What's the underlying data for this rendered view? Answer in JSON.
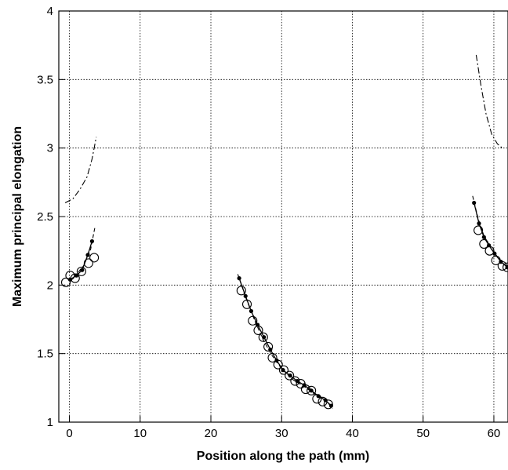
{
  "chart_data": {
    "type": "scatter",
    "xlabel": "Position along the path (mm)",
    "ylabel": "Maximum principal elongation",
    "xlim": [
      -1.5,
      62
    ],
    "ylim": [
      1,
      4
    ],
    "x_ticks": [
      0,
      10,
      20,
      30,
      40,
      50,
      60
    ],
    "y_ticks": [
      1,
      1.5,
      2,
      2.5,
      3,
      3.5,
      4
    ],
    "x_tick_labels": [
      "0",
      "10",
      "20",
      "30",
      "40",
      "50",
      "60"
    ],
    "y_tick_labels": [
      "1",
      "1.5",
      "2",
      "2.5",
      "3",
      "3.5",
      "4"
    ],
    "grid": true,
    "series": [
      {
        "style": "open-circle",
        "points": [
          [
            -0.5,
            2.02
          ],
          [
            0.1,
            2.07
          ],
          [
            0.8,
            2.05
          ],
          [
            1.7,
            2.1
          ],
          [
            2.7,
            2.16
          ],
          [
            3.5,
            2.2
          ],
          [
            24.3,
            1.96
          ],
          [
            25.1,
            1.86
          ],
          [
            25.9,
            1.74
          ],
          [
            26.7,
            1.67
          ],
          [
            27.4,
            1.62
          ],
          [
            28.1,
            1.55
          ],
          [
            28.7,
            1.47
          ],
          [
            29.5,
            1.42
          ],
          [
            30.3,
            1.38
          ],
          [
            31.1,
            1.34
          ],
          [
            31.9,
            1.3
          ],
          [
            32.7,
            1.28
          ],
          [
            33.4,
            1.24
          ],
          [
            34.2,
            1.23
          ],
          [
            35.0,
            1.17
          ],
          [
            35.8,
            1.15
          ],
          [
            36.6,
            1.13
          ],
          [
            57.8,
            2.4
          ],
          [
            58.6,
            2.3
          ],
          [
            59.4,
            2.25
          ],
          [
            60.3,
            2.18
          ],
          [
            61.2,
            2.14
          ],
          [
            61.9,
            2.13
          ]
        ]
      },
      {
        "style": "solid-line-dots",
        "segments": [
          [
            [
              0.1,
              2.04
            ],
            [
              1.0,
              2.07
            ],
            [
              1.8,
              2.11
            ],
            [
              2.6,
              2.22
            ],
            [
              3.2,
              2.32
            ]
          ],
          [
            [
              24.0,
              2.05
            ],
            [
              24.9,
              1.92
            ],
            [
              25.7,
              1.81
            ],
            [
              26.6,
              1.71
            ],
            [
              27.5,
              1.62
            ],
            [
              28.4,
              1.53
            ],
            [
              29.3,
              1.45
            ],
            [
              30.2,
              1.38
            ],
            [
              31.2,
              1.34
            ],
            [
              32.2,
              1.3
            ],
            [
              33.2,
              1.27
            ],
            [
              34.2,
              1.23
            ],
            [
              35.2,
              1.19
            ],
            [
              36.2,
              1.16
            ],
            [
              37.0,
              1.12
            ]
          ],
          [
            [
              57.2,
              2.6
            ],
            [
              57.9,
              2.45
            ],
            [
              58.6,
              2.35
            ],
            [
              59.3,
              2.29
            ],
            [
              60.1,
              2.23
            ],
            [
              61.0,
              2.17
            ],
            [
              61.9,
              2.13
            ]
          ]
        ]
      },
      {
        "style": "dashed",
        "segments": [
          [
            [
              0.0,
              2.03
            ],
            [
              1.0,
              2.08
            ],
            [
              2.0,
              2.14
            ],
            [
              3.0,
              2.26
            ],
            [
              3.6,
              2.42
            ]
          ],
          [
            [
              23.8,
              2.08
            ],
            [
              25.0,
              1.9
            ],
            [
              26.2,
              1.74
            ],
            [
              27.4,
              1.6
            ],
            [
              28.6,
              1.49
            ],
            [
              30.0,
              1.39
            ],
            [
              31.6,
              1.31
            ],
            [
              33.2,
              1.26
            ],
            [
              34.8,
              1.2
            ],
            [
              36.4,
              1.15
            ],
            [
              37.2,
              1.1
            ]
          ],
          [
            [
              57.0,
              2.65
            ],
            [
              57.8,
              2.48
            ],
            [
              58.6,
              2.36
            ],
            [
              59.6,
              2.27
            ],
            [
              60.6,
              2.2
            ],
            [
              61.5,
              2.15
            ],
            [
              62.0,
              2.13
            ]
          ]
        ]
      },
      {
        "style": "dash-dot",
        "segments": [
          [
            [
              -0.6,
              2.6
            ],
            [
              0.5,
              2.63
            ],
            [
              1.5,
              2.7
            ],
            [
              2.5,
              2.79
            ],
            [
              3.2,
              2.92
            ],
            [
              3.8,
              3.08
            ]
          ],
          [
            [
              57.5,
              3.68
            ],
            [
              58.2,
              3.45
            ],
            [
              58.9,
              3.25
            ],
            [
              59.7,
              3.1
            ],
            [
              60.5,
              3.03
            ],
            [
              61.2,
              3.0
            ]
          ]
        ]
      }
    ]
  }
}
